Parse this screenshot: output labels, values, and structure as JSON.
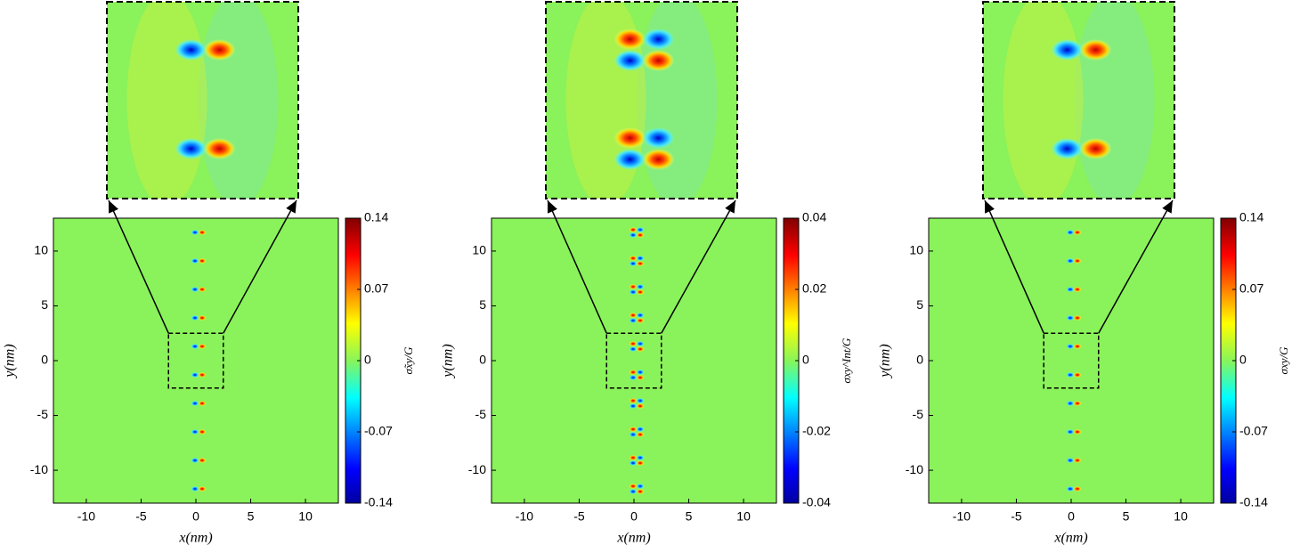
{
  "chart_data": [
    {
      "type": "heatmap",
      "colormap": "jet",
      "xlabel": "x(nm)",
      "ylabel": "y(nm)",
      "xlim": [
        -13,
        13
      ],
      "ylim": [
        -13,
        13
      ],
      "xticks": [
        -10,
        -5,
        0,
        5,
        10
      ],
      "yticks": [
        -10,
        -5,
        0,
        5,
        10
      ],
      "zoom": {
        "xlim": [
          -2.5,
          2.5
        ],
        "ylim": [
          -2.5,
          2.5
        ]
      },
      "colorbar": {
        "label": "σ̃xy/G",
        "lim": [
          -0.14,
          0.14
        ],
        "ticks": [
          -0.14,
          -0.07,
          0,
          0.07,
          0.14
        ]
      }
    },
    {
      "type": "heatmap",
      "colormap": "jet",
      "xlabel": "x(nm)",
      "ylabel": "y(nm)",
      "xlim": [
        -13,
        13
      ],
      "ylim": [
        -13,
        13
      ],
      "xticks": [
        -10,
        -5,
        0,
        5,
        10
      ],
      "yticks": [
        -10,
        -5,
        0,
        5,
        10
      ],
      "zoom": {
        "xlim": [
          -2.5,
          2.5
        ],
        "ylim": [
          -2.5,
          2.5
        ]
      },
      "colorbar": {
        "label": "σxy^Int/G",
        "lim": [
          -0.04,
          0.04
        ],
        "ticks": [
          -0.04,
          -0.02,
          0,
          0.02,
          0.04
        ]
      }
    },
    {
      "type": "heatmap",
      "colormap": "jet",
      "xlabel": "x(nm)",
      "ylabel": "y(nm)",
      "xlim": [
        -13,
        13
      ],
      "ylim": [
        -13,
        13
      ],
      "xticks": [
        -10,
        -5,
        0,
        5,
        10
      ],
      "yticks": [
        -10,
        -5,
        0,
        5,
        10
      ],
      "zoom": {
        "xlim": [
          -2.5,
          2.5
        ],
        "ylim": [
          -2.5,
          2.5
        ]
      },
      "colorbar": {
        "label": "σxy/G",
        "lim": [
          -0.14,
          0.14
        ],
        "ticks": [
          -0.14,
          -0.07,
          0,
          0.07,
          0.14
        ]
      }
    }
  ]
}
